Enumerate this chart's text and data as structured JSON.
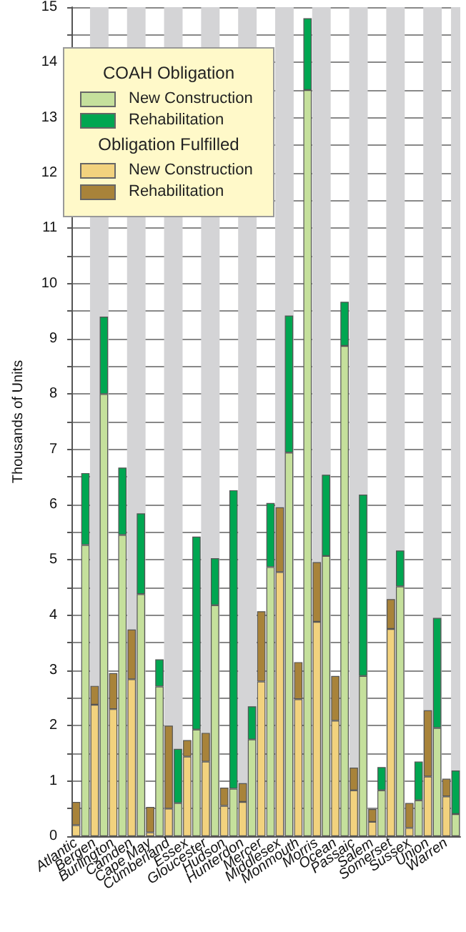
{
  "chart_data": {
    "type": "bar",
    "stacked": true,
    "ylabel": "Thousands of Units",
    "annotations": [
      "COAH Obligation",
      "Obligation Fulfilled"
    ],
    "categories": [
      "Atlantic",
      null,
      "Bergen",
      null,
      "Burlington",
      null,
      "Camden",
      null,
      "Cape May",
      null,
      "Cumberland",
      null,
      "Essex",
      null,
      "Gloucester",
      null,
      "Hudson",
      null,
      "Hunterdon",
      null,
      "Mercer",
      null,
      "Middlesex",
      null,
      "Monmouth",
      null,
      "Morris",
      null,
      "Ocean",
      null,
      "Passaic",
      null,
      "Salem",
      null,
      "Somerset",
      null,
      "Sussex",
      null,
      "Union",
      null,
      "Warren",
      null
    ],
    "series": [
      {
        "name": "New Construction",
        "color": "#f2d27e",
        "values": [
          0.2,
          null,
          2.38,
          null,
          2.3,
          null,
          2.84,
          null,
          0.07,
          null,
          0.5,
          null,
          1.44,
          null,
          1.35,
          null,
          0.55,
          null,
          0.62,
          null,
          2.8,
          null,
          4.78,
          null,
          2.48,
          null,
          3.88,
          null,
          2.09,
          null,
          0.83,
          null,
          0.26,
          null,
          3.75,
          null,
          0.15,
          null,
          1.08,
          null,
          0.72,
          null
        ]
      },
      {
        "name": "Rehabilitation",
        "color": "#a8833a",
        "values": [
          0.42,
          null,
          0.34,
          null,
          0.65,
          null,
          0.9,
          null,
          0.46,
          null,
          1.5,
          null,
          0.3,
          null,
          0.52,
          null,
          0.33,
          null,
          0.34,
          null,
          1.27,
          null,
          1.17,
          null,
          0.67,
          null,
          1.08,
          null,
          0.81,
          null,
          0.41,
          null,
          0.23,
          null,
          0.54,
          null,
          0.45,
          null,
          1.2,
          null,
          0.32,
          null
        ]
      },
      {
        "name": "New Construction",
        "color": "#c5e09c",
        "values": [
          null,
          5.27,
          null,
          8.0,
          null,
          5.45,
          null,
          4.38,
          null,
          2.71,
          null,
          0.6,
          null,
          1.93,
          null,
          4.18,
          null,
          0.86,
          null,
          1.75,
          null,
          4.87,
          null,
          6.94,
          null,
          13.5,
          null,
          5.07,
          null,
          8.87,
          null,
          2.9,
          null,
          0.83,
          null,
          4.52,
          null,
          0.65,
          null,
          1.96,
          null,
          0.4
        ]
      },
      {
        "name": "Rehabilitation",
        "color": "#00a651",
        "values": [
          null,
          1.3,
          null,
          1.4,
          null,
          1.22,
          null,
          1.46,
          null,
          0.49,
          null,
          0.98,
          null,
          3.49,
          null,
          0.85,
          null,
          5.4,
          null,
          0.6,
          null,
          1.16,
          null,
          2.48,
          null,
          1.3,
          null,
          1.47,
          null,
          0.8,
          null,
          3.28,
          null,
          0.42,
          null,
          0.65,
          null,
          0.7,
          null,
          1.99,
          null,
          0.79
        ]
      }
    ],
    "ylim": [
      0,
      15
    ],
    "yticks": [
      0,
      1,
      2,
      3,
      4,
      5,
      6,
      7,
      8,
      9,
      10,
      11,
      12,
      13,
      14,
      15
    ],
    "grid": "y",
    "legend": "top left"
  }
}
